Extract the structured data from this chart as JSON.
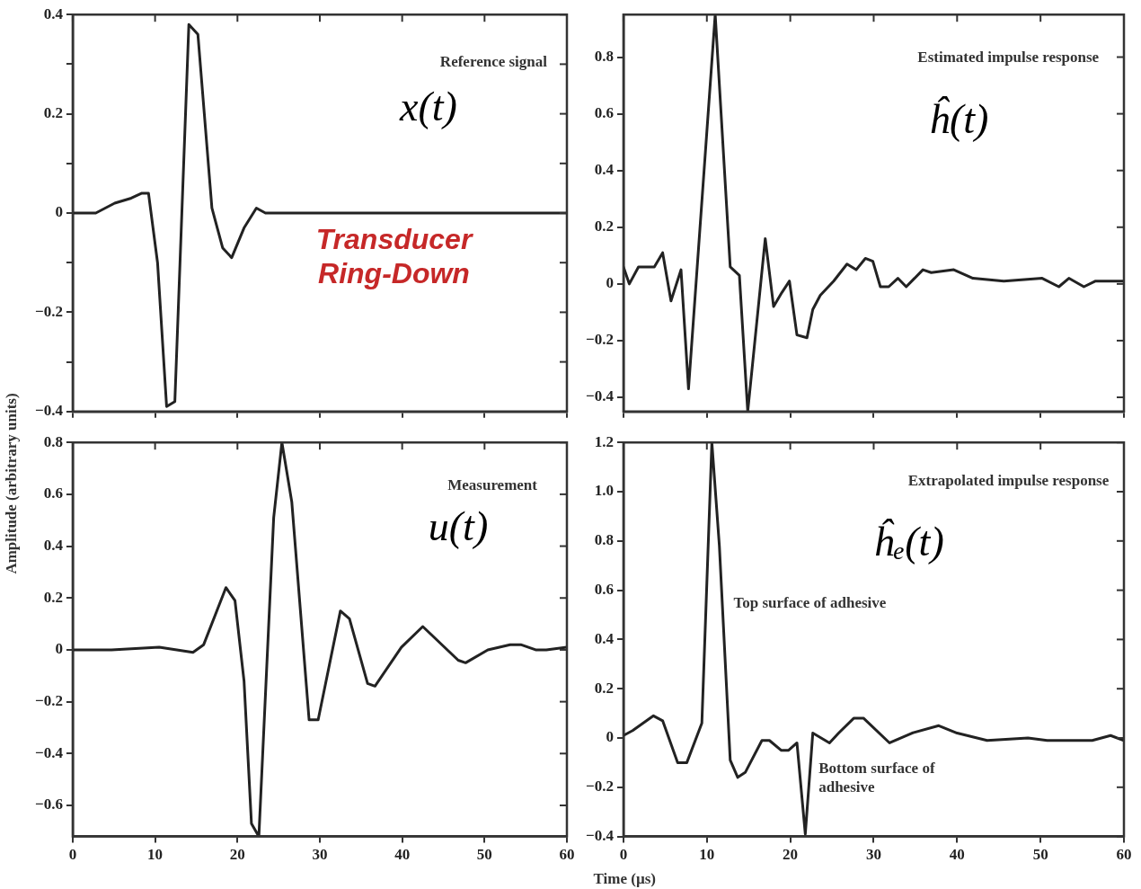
{
  "chart_data": [
    {
      "type": "line",
      "annotations": [
        "Reference signal",
        "x(t)",
        "Transducer Ring-Down"
      ],
      "marker": "none",
      "tick_labels": "y",
      "xlim": [
        0,
        60
      ],
      "xticks": [
        0,
        10,
        20,
        30,
        40,
        50,
        60
      ],
      "ylim": [
        -0.4,
        0.4
      ],
      "yticks": [
        -0.4,
        {
          "value": -0.3,
          "label": null
        },
        -0.2,
        {
          "value": -0.1,
          "label": null
        },
        0,
        {
          "value": 0.1,
          "label": null
        },
        0.2,
        {
          "value": 0.3,
          "label": null
        },
        0.4
      ],
      "series": [
        {
          "color": "#222222",
          "x": [
            0,
            2.8,
            5.1,
            7.1,
            8.4,
            9.2,
            10.3,
            11.4,
            12.4,
            14.1,
            15.2,
            16.9,
            18.2,
            19.3,
            20.8,
            22.3,
            23.4,
            60
          ],
          "values": [
            0,
            0,
            0.02,
            0.03,
            0.04,
            0.04,
            -0.1,
            -0.39,
            -0.38,
            0.38,
            0.36,
            0.01,
            -0.07,
            -0.09,
            -0.03,
            0.01,
            0,
            0
          ]
        }
      ]
    },
    {
      "type": "line",
      "annotations": [
        "Estimated impulse response",
        "ĥ(t)"
      ],
      "marker": "none",
      "tick_labels": "y",
      "xlim": [
        0,
        60
      ],
      "xticks": [
        0,
        10,
        20,
        30,
        40,
        50,
        60
      ],
      "ylim": [
        -0.45,
        0.95
      ],
      "yticks": [
        -0.4,
        -0.2,
        0,
        0.2,
        0.4,
        0.6,
        0.8
      ],
      "series": [
        {
          "color": "#222222",
          "x": [
            0,
            0.7,
            1.8,
            3.7,
            4.7,
            5.7,
            6.9,
            7.8,
            11,
            12.8,
            13.9,
            14.9,
            17,
            18,
            19,
            19.9,
            20.8,
            22,
            22.7,
            23.6,
            25.2,
            26.8,
            27.9,
            29,
            29.9,
            30.8,
            31.8,
            32.9,
            33.9,
            35.9,
            36.9,
            39.6,
            41.9,
            45.6,
            50.2,
            52.2,
            53.4,
            55.2,
            56.6,
            60
          ],
          "values": [
            0.06,
            0,
            0.06,
            0.06,
            0.11,
            -0.06,
            0.05,
            -0.37,
            0.95,
            0.06,
            0.03,
            -0.45,
            0.16,
            -0.08,
            -0.03,
            0.01,
            -0.18,
            -0.19,
            -0.09,
            -0.04,
            0.01,
            0.07,
            0.05,
            0.09,
            0.08,
            -0.01,
            -0.01,
            0.02,
            -0.01,
            0.05,
            0.04,
            0.05,
            0.02,
            0.01,
            0.02,
            -0.01,
            0.02,
            -0.01,
            0.01,
            0.01
          ]
        }
      ]
    },
    {
      "type": "line",
      "annotations": [
        "Measurement",
        "u(t)"
      ],
      "marker": "none",
      "xlabel": "Time (µs)",
      "ylabel": "Amplitude (arbitrary units)",
      "xlim": [
        0,
        60
      ],
      "xticks": [
        0,
        10,
        20,
        30,
        40,
        50,
        60
      ],
      "ylim": [
        -0.72,
        0.8
      ],
      "yticks": [
        -0.6,
        -0.4,
        -0.2,
        0,
        0.2,
        0.4,
        0.6,
        0.8
      ],
      "series": [
        {
          "color": "#222222",
          "x": [
            0,
            4.7,
            10.5,
            14.6,
            15.9,
            18.6,
            19.7,
            20.8,
            21.7,
            22.6,
            24.4,
            25.4,
            26.6,
            28.7,
            29.8,
            32.5,
            33.6,
            35.8,
            36.7,
            39.9,
            42.5,
            46.8,
            47.7,
            50.4,
            53.1,
            54.4,
            56.2,
            57.5,
            60
          ],
          "values": [
            0,
            0,
            0.01,
            -0.01,
            0.02,
            0.24,
            0.19,
            -0.12,
            -0.67,
            -0.72,
            0.51,
            0.8,
            0.57,
            -0.27,
            -0.27,
            0.15,
            0.12,
            -0.13,
            -0.14,
            0.01,
            0.09,
            -0.04,
            -0.05,
            0,
            0.02,
            0.02,
            0,
            0,
            0.01
          ]
        }
      ]
    },
    {
      "type": "line",
      "annotations": [
        "Extrapolated impulse response",
        "ĥₑ(t)",
        "Top surface of adhesive",
        "Bottom surface of adhesive"
      ],
      "marker": "none",
      "xlim": [
        0,
        60
      ],
      "xticks": [
        0,
        10,
        20,
        30,
        40,
        50,
        60
      ],
      "ylim": [
        -0.4,
        1.2
      ],
      "yticks": [
        -0.4,
        -0.2,
        0,
        0.2,
        0.4,
        0.6,
        0.8,
        {
          "value": 1,
          "label": "1.0"
        },
        1.2
      ],
      "series": [
        {
          "color": "#222222",
          "x": [
            0,
            1.1,
            3.6,
            4.7,
            6.5,
            7.6,
            9.4,
            10.6,
            11.5,
            12.8,
            13.7,
            14.6,
            16.6,
            17.5,
            18.9,
            19.8,
            20.8,
            21.8,
            22.7,
            24.7,
            25.8,
            27.6,
            28.8,
            31.9,
            34.6,
            37.8,
            40,
            43.6,
            48.5,
            50.8,
            54.4,
            56.2,
            58.4,
            60
          ],
          "values": [
            0.01,
            0.03,
            0.09,
            0.07,
            -0.1,
            -0.1,
            0.06,
            1.2,
            0.78,
            -0.09,
            -0.16,
            -0.14,
            -0.01,
            -0.01,
            -0.05,
            -0.05,
            -0.02,
            -0.39,
            0.02,
            -0.02,
            0.02,
            0.08,
            0.08,
            -0.02,
            0.02,
            0.05,
            0.02,
            -0.01,
            0,
            -0.01,
            -0.01,
            -0.01,
            0.01,
            -0.01
          ]
        }
      ]
    }
  ]
}
